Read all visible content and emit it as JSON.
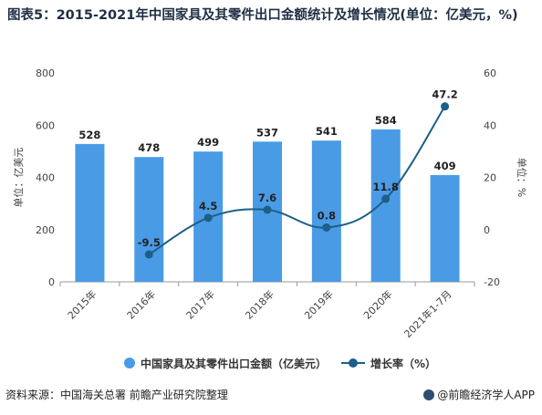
{
  "title": "图表5：2015-2021年中国家具及其零件出口金额统计及增长情况(单位：亿美元，%)",
  "source": "资料来源：中国海关总署 前瞻产业研究院整理",
  "brand": "@前瞻经济学人APP",
  "colors": {
    "bar": "#4a9be6",
    "line": "#1d5f86"
  },
  "chart_data": {
    "type": "bar",
    "categories": [
      "2015年",
      "2016年",
      "2017年",
      "2018年",
      "2019年",
      "2020年",
      "2021年1-7月"
    ],
    "series": [
      {
        "name": "中国家具及其零件出口金额（亿美元）",
        "type": "bar",
        "axis": "left",
        "values": [
          528,
          478,
          499,
          537,
          541,
          584,
          409
        ]
      },
      {
        "name": "增长率（%）",
        "type": "line",
        "axis": "right",
        "values": [
          null,
          -9.5,
          4.5,
          7.6,
          0.8,
          11.8,
          47.2
        ]
      }
    ],
    "bar_labels": [
      "528",
      "478",
      "499",
      "537",
      "541",
      "584",
      "409"
    ],
    "line_labels": [
      "",
      "-9.5",
      "4.5",
      "7.6",
      "0.8",
      "11.8",
      "47.2"
    ],
    "ylabel": "单位：亿美元",
    "y2label": "单位：%",
    "ylim": [
      0,
      800
    ],
    "y2lim": [
      -20,
      60
    ],
    "yticks": [
      "0",
      "200",
      "400",
      "600",
      "800"
    ],
    "y2ticks": [
      "-20",
      "0",
      "20",
      "40",
      "60"
    ],
    "grid": false,
    "legend_position": "bottom"
  }
}
